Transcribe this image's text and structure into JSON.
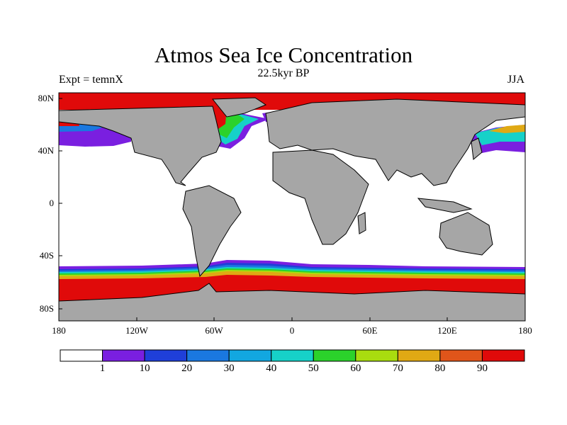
{
  "title": "Atmos Sea Ice Concentration",
  "subtitle": "22.5kyr BP",
  "left_label": "Expt = temnX",
  "right_label": "JJA",
  "lat_labels": [
    "80N",
    "40N",
    "0",
    "40S",
    "80S"
  ],
  "lon_labels": [
    "180",
    "120W",
    "60W",
    "0",
    "60E",
    "120E",
    "180"
  ],
  "colorbar": {
    "levels": [
      "1",
      "10",
      "20",
      "30",
      "40",
      "50",
      "60",
      "70",
      "80",
      "90"
    ],
    "colors": [
      "#ffffff",
      "#7a1fe0",
      "#1f3fd9",
      "#1a78e0",
      "#12a7e0",
      "#16d1c8",
      "#2bd22b",
      "#a9dc0f",
      "#e0a914",
      "#e0551a",
      "#e00a0a"
    ]
  },
  "map_colors": {
    "land": "#a6a6a6",
    "ocean": "#ffffff",
    "ice_high": "#e00a0a"
  }
}
